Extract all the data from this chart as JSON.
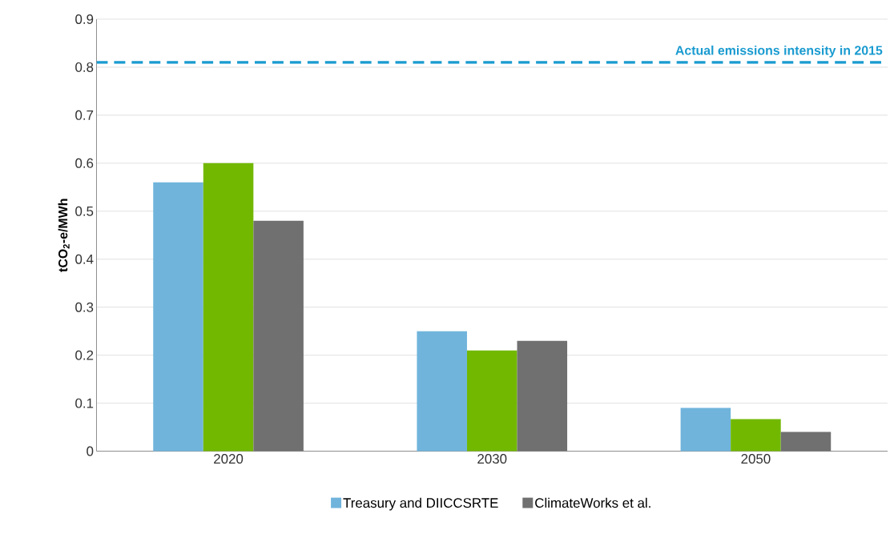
{
  "chart_data": {
    "type": "bar",
    "ylabel": "tCO$_{2}$-e/MWh",
    "categories": [
      "2020",
      "2030",
      "2050"
    ],
    "series": [
      {
        "name": "Treasury and DIICCSRTE",
        "color": "#70b4dc",
        "values": [
          0.56,
          0.25,
          0.09
        ]
      },
      {
        "color": "#72b800",
        "values": [
          0.6,
          0.21,
          0.067
        ]
      },
      {
        "name": "ClimateWorks et al.",
        "color": "#707070",
        "values": [
          0.48,
          0.23,
          0.04
        ]
      }
    ],
    "ylim": [
      0,
      0.9
    ],
    "yticks": [
      0,
      0.1,
      0.2,
      0.3,
      0.4,
      0.5,
      0.6,
      0.7,
      0.8,
      0.9
    ],
    "grid": "y",
    "legend": "bottom",
    "ref_lines": [
      {
        "axis": "y",
        "value": 0.81,
        "label": "Actual emissions intensity in 2015",
        "color": "#1a9bd0",
        "line_style": "dashed"
      }
    ]
  }
}
